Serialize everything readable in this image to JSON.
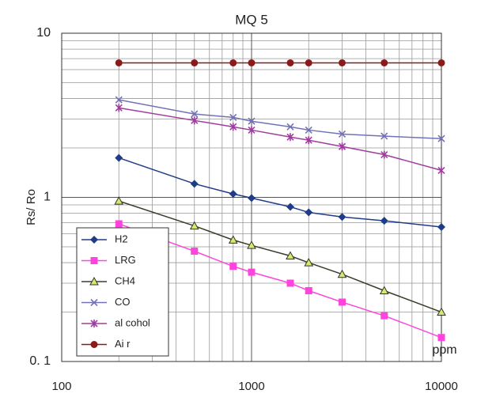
{
  "chart_data": {
    "type": "line",
    "title": "MQ 5",
    "ylabel": "Rs/ Ro",
    "xlabel": "ppm",
    "xscale": "log",
    "yscale": "log",
    "grid": true,
    "xlim": [
      100,
      10000
    ],
    "xticks": [
      100,
      1000,
      10000
    ],
    "x_minor_ticks": [
      200,
      300,
      400,
      500,
      600,
      700,
      800,
      900,
      2000,
      3000,
      4000,
      5000,
      6000,
      7000,
      8000,
      9000
    ],
    "ylim": [
      0.1,
      10
    ],
    "yticks": [
      {
        "value": 0.1,
        "label": "0. 1"
      },
      1,
      10
    ],
    "y_minor_ticks": [
      0.2,
      0.3,
      0.4,
      0.5,
      0.6,
      0.7,
      0.8,
      0.9,
      2,
      3,
      4,
      5,
      6,
      7,
      8,
      9
    ],
    "x": [
      200,
      500,
      800,
      1000,
      1600,
      2000,
      3000,
      5000,
      10000
    ],
    "series": [
      {
        "name": "H2",
        "color": "#1f3c88",
        "marker": "diamond",
        "marker_color": "#1f3c88",
        "values": [
          1.74,
          1.21,
          1.05,
          0.99,
          0.875,
          0.81,
          0.76,
          0.72,
          0.66
        ]
      },
      {
        "name": "LRG",
        "color": "#ff44dd",
        "marker": "square",
        "marker_color": "#ff44dd",
        "values": [
          0.69,
          0.47,
          0.38,
          0.35,
          0.3,
          0.27,
          0.23,
          0.19,
          0.14
        ]
      },
      {
        "name": "CH4",
        "color": "#3b3b2b",
        "marker": "triangle",
        "marker_color": "#d8e86a",
        "values": [
          0.95,
          0.67,
          0.55,
          0.51,
          0.44,
          0.4,
          0.34,
          0.27,
          0.2
        ]
      },
      {
        "name": "CO",
        "color": "#7272b8",
        "marker": "x",
        "marker_color": "#7272b8",
        "values": [
          3.93,
          3.22,
          3.07,
          2.91,
          2.69,
          2.57,
          2.43,
          2.36,
          2.28
        ]
      },
      {
        "name": "al cohol",
        "color": "#a03ca0",
        "marker": "star",
        "marker_color": "#a03ca0",
        "values": [
          3.51,
          2.94,
          2.69,
          2.57,
          2.33,
          2.23,
          2.04,
          1.82,
          1.46
        ]
      },
      {
        "name": "Ai r",
        "color": "#8b1a1a",
        "marker": "circle",
        "marker_color": "#8b1a1a",
        "values": [
          6.6,
          6.6,
          6.6,
          6.6,
          6.6,
          6.6,
          6.6,
          6.6,
          6.6
        ]
      }
    ]
  }
}
